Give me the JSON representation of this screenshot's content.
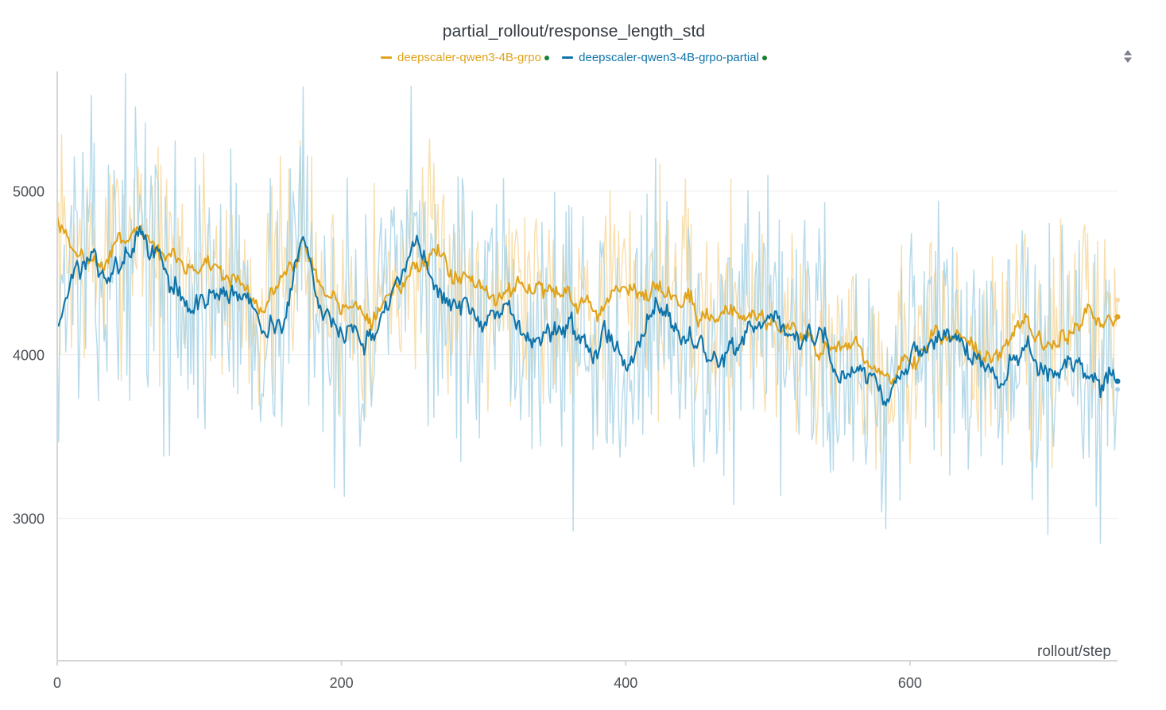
{
  "colors": {
    "background": "#ffffff",
    "grid": "#ececec",
    "axis": "#d6d6d6",
    "legend_dot": "#1a7f2e"
  },
  "chart_data": {
    "type": "line",
    "title": "partial_rollout/response_length_std",
    "xlabel": "rollout/step",
    "ylabel": "",
    "xlim": [
      0,
      746
    ],
    "ylim": [
      2130,
      5730
    ],
    "xticks": [
      0,
      200,
      400,
      600
    ],
    "yticks": [
      3000,
      4000,
      5000
    ],
    "grid": true,
    "legend_position": "top-center",
    "smoothing_alpha": 0.12,
    "series": [
      {
        "name": "deepscaler-qwen3-4B-grpo",
        "color": "#e0a31a",
        "raw_color": "#f7d9a0",
        "anchors": [
          [
            0,
            4720
          ],
          [
            8,
            4600
          ],
          [
            20,
            4580
          ],
          [
            28,
            4500
          ],
          [
            40,
            4640
          ],
          [
            56,
            4860
          ],
          [
            64,
            4700
          ],
          [
            76,
            4560
          ],
          [
            90,
            4500
          ],
          [
            104,
            4580
          ],
          [
            118,
            4500
          ],
          [
            140,
            4330
          ],
          [
            158,
            4420
          ],
          [
            172,
            4760
          ],
          [
            184,
            4330
          ],
          [
            196,
            4310
          ],
          [
            214,
            4300
          ],
          [
            232,
            4380
          ],
          [
            252,
            4630
          ],
          [
            262,
            4500
          ],
          [
            282,
            4480
          ],
          [
            300,
            4450
          ],
          [
            318,
            4430
          ],
          [
            338,
            4400
          ],
          [
            360,
            4430
          ],
          [
            376,
            4300
          ],
          [
            388,
            4390
          ],
          [
            402,
            4320
          ],
          [
            420,
            4470
          ],
          [
            436,
            4310
          ],
          [
            452,
            4180
          ],
          [
            468,
            4300
          ],
          [
            484,
            4290
          ],
          [
            500,
            4210
          ],
          [
            520,
            4130
          ],
          [
            536,
            4040
          ],
          [
            550,
            4050
          ],
          [
            566,
            4020
          ],
          [
            582,
            3880
          ],
          [
            596,
            3990
          ],
          [
            614,
            4070
          ],
          [
            632,
            4120
          ],
          [
            648,
            4050
          ],
          [
            662,
            3920
          ],
          [
            674,
            4230
          ],
          [
            690,
            4110
          ],
          [
            704,
            4030
          ],
          [
            718,
            4220
          ],
          [
            732,
            4210
          ],
          [
            746,
            4230
          ]
        ],
        "noise": 340,
        "seed": 7
      },
      {
        "name": "deepscaler-qwen3-4B-grpo-partial",
        "color": "#0f74aa",
        "raw_color": "#a9d3e6",
        "anchors": [
          [
            0,
            4230
          ],
          [
            8,
            4560
          ],
          [
            20,
            4600
          ],
          [
            28,
            4450
          ],
          [
            40,
            4520
          ],
          [
            56,
            4820
          ],
          [
            64,
            4600
          ],
          [
            76,
            4440
          ],
          [
            90,
            4300
          ],
          [
            104,
            4350
          ],
          [
            118,
            4400
          ],
          [
            140,
            4250
          ],
          [
            158,
            4240
          ],
          [
            172,
            4840
          ],
          [
            184,
            4100
          ],
          [
            196,
            4240
          ],
          [
            214,
            4100
          ],
          [
            232,
            4220
          ],
          [
            252,
            4670
          ],
          [
            262,
            4420
          ],
          [
            282,
            4260
          ],
          [
            300,
            4150
          ],
          [
            318,
            4130
          ],
          [
            338,
            4140
          ],
          [
            360,
            4190
          ],
          [
            376,
            3900
          ],
          [
            388,
            4150
          ],
          [
            402,
            4060
          ],
          [
            420,
            4450
          ],
          [
            436,
            4080
          ],
          [
            452,
            4030
          ],
          [
            468,
            4000
          ],
          [
            484,
            4020
          ],
          [
            500,
            4080
          ],
          [
            520,
            4080
          ],
          [
            536,
            4080
          ],
          [
            550,
            3890
          ],
          [
            566,
            3970
          ],
          [
            582,
            3720
          ],
          [
            596,
            4030
          ],
          [
            614,
            4010
          ],
          [
            632,
            4030
          ],
          [
            648,
            3990
          ],
          [
            662,
            3630
          ],
          [
            674,
            4060
          ],
          [
            690,
            3950
          ],
          [
            704,
            3960
          ],
          [
            718,
            3860
          ],
          [
            732,
            3820
          ],
          [
            746,
            3880
          ]
        ],
        "noise": 420,
        "seed": 13
      }
    ]
  }
}
